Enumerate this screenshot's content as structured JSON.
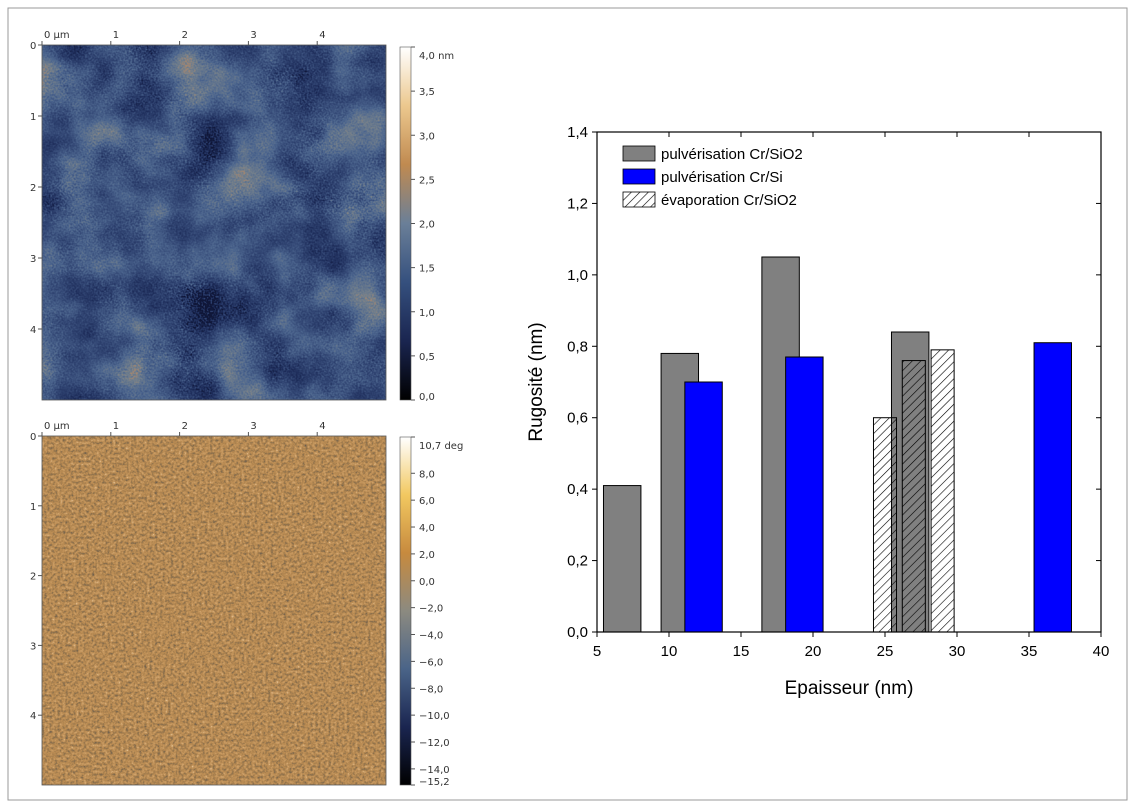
{
  "chart_data": [
    {
      "type": "image",
      "invert_y": true,
      "xlim": [
        0,
        5
      ],
      "ylim": [
        0,
        5
      ],
      "xticks": [
        {
          "value": 0,
          "label": "0 µm"
        },
        1,
        2,
        3,
        4
      ],
      "yticks": [
        0,
        1,
        2,
        3,
        4
      ],
      "colorbar": {
        "lim": [
          0,
          4
        ],
        "ticks": [
          {
            "value": 4,
            "label": "4,0 nm"
          },
          {
            "value": 3.5,
            "label": "3,5"
          },
          {
            "value": 3,
            "label": "3,0"
          },
          {
            "value": 2.5,
            "label": "2,5"
          },
          {
            "value": 2,
            "label": "2,0"
          },
          {
            "value": 1.5,
            "label": "1,5"
          },
          {
            "value": 1,
            "label": "1,0"
          },
          {
            "value": 0.5,
            "label": "0,5"
          },
          {
            "value": 0,
            "label": "0,0"
          }
        ],
        "colors": [
          "#000000",
          "#1a2550",
          "#35507e",
          "#6a7f98",
          "#c08a50",
          "#ecc88e",
          "#ffffff"
        ]
      }
    },
    {
      "type": "image",
      "invert_y": true,
      "xlim": [
        0,
        5
      ],
      "ylim": [
        0,
        5
      ],
      "xticks": [
        {
          "value": 0,
          "label": "0 µm"
        },
        1,
        2,
        3,
        4
      ],
      "yticks": [
        0,
        1,
        2,
        3,
        4
      ],
      "colorbar": {
        "lim": [
          -15.2,
          10.7
        ],
        "ticks": [
          {
            "value": 10.7,
            "label": "10,7 deg"
          },
          {
            "value": 8,
            "label": "8,0"
          },
          {
            "value": 6,
            "label": "6,0"
          },
          {
            "value": 4,
            "label": "4,0"
          },
          {
            "value": 2,
            "label": "2,0"
          },
          {
            "value": 0,
            "label": "0,0"
          },
          {
            "value": -2,
            "label": "−2,0"
          },
          {
            "value": -4,
            "label": "−4,0"
          },
          {
            "value": -6,
            "label": "−6,0"
          },
          {
            "value": -8,
            "label": "−8,0"
          },
          {
            "value": -10,
            "label": "−10,0"
          },
          {
            "value": -12,
            "label": "−12,0"
          },
          {
            "value": -14,
            "label": "−14,0"
          },
          {
            "value": -15.2,
            "label": "−15,2"
          }
        ],
        "colors": [
          "#000000",
          "#1a2550",
          "#4a6488",
          "#8c8a80",
          "#c78a3e",
          "#f2c860",
          "#ffffff"
        ]
      }
    },
    {
      "type": "bar",
      "xlabel": "Epaisseur (nm)",
      "ylabel": "Rugosité (nm)",
      "xlim": [
        5,
        40
      ],
      "ylim": [
        0,
        1.4
      ],
      "xticks": [
        5,
        10,
        15,
        20,
        25,
        30,
        35,
        40
      ],
      "yticks": [
        {
          "value": 0,
          "label": "0,0"
        },
        {
          "value": 0.2,
          "label": "0,2"
        },
        {
          "value": 0.4,
          "label": "0,4"
        },
        {
          "value": 0.6,
          "label": "0,6"
        },
        {
          "value": 0.8,
          "label": "0,8"
        },
        {
          "value": 1.0,
          "label": "1,0"
        },
        {
          "value": 1.2,
          "label": "1,2"
        },
        {
          "value": 1.4,
          "label": "1,4"
        }
      ],
      "legend": "upper left",
      "series": [
        {
          "name": "pulvérisation Cr/SiO2",
          "color": "#808080",
          "x": [
            6.75,
            10.75,
            17.75,
            26.75
          ],
          "values": [
            0.41,
            0.78,
            1.05,
            0.84
          ]
        },
        {
          "name": "pulvérisation Cr/Si",
          "color": "#0000ff",
          "x": [
            12.4,
            19.4,
            36.65
          ],
          "values": [
            0.7,
            0.77,
            0.81
          ]
        },
        {
          "name": "évaporation Cr/SiO2",
          "color": "#000000",
          "pattern": "hatch",
          "x": [
            25.0,
            27.0,
            29.0
          ],
          "values": [
            0.6,
            0.76,
            0.79
          ]
        }
      ]
    }
  ]
}
